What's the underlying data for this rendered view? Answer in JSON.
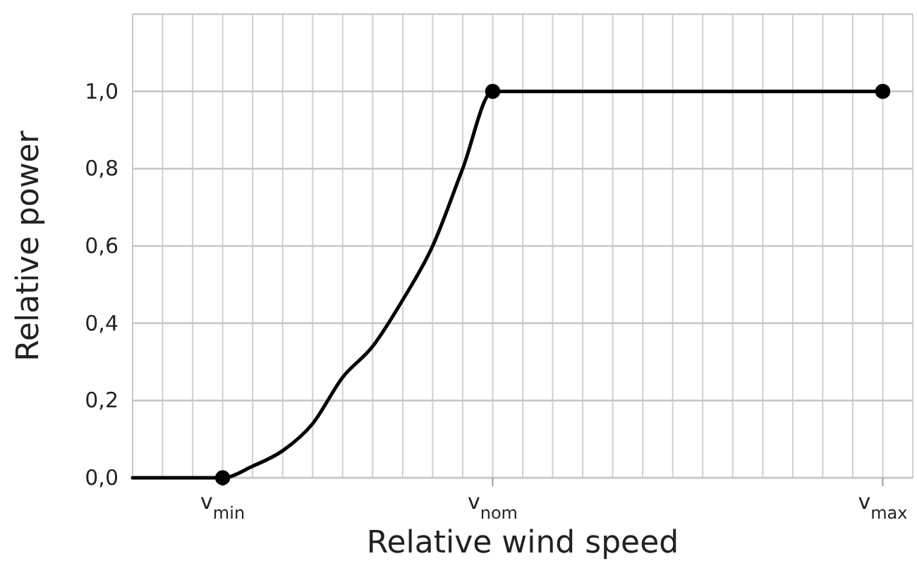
{
  "chart_data": {
    "type": "line",
    "xlabel": "Relative wind speed",
    "ylabel": "Relative power",
    "categories": [
      null,
      null,
      null,
      "v$_{min}$",
      null,
      null,
      null,
      null,
      null,
      null,
      null,
      null,
      "v$_{nom}$",
      null,
      null,
      null,
      null,
      null,
      null,
      null,
      null,
      null,
      null,
      null,
      null,
      "v$_{max}$",
      null
    ],
    "ylim": [
      0,
      1.2
    ],
    "yticks": [
      {
        "value": 0,
        "label": "0,0"
      },
      {
        "value": 0.2,
        "label": "0,2"
      },
      {
        "value": 0.4,
        "label": "0,4"
      },
      {
        "value": 0.6,
        "label": "0,6"
      },
      {
        "value": 0.8,
        "label": "0,8"
      },
      {
        "value": 1,
        "label": "1,0"
      },
      {
        "value": 1.2,
        "label": null
      }
    ],
    "grid": true,
    "series": [
      {
        "color": "#000000",
        "marker": "none",
        "values": [
          0,
          0,
          0,
          0,
          0.03,
          0.07,
          0.14,
          0.26,
          0.34,
          0.46,
          0.6,
          0.8,
          1,
          1,
          1,
          1,
          1,
          1,
          1,
          1,
          1,
          1,
          1,
          1,
          1,
          1,
          null
        ]
      },
      {
        "type": "scatter",
        "color": "#000000",
        "marker": "circle",
        "values": [
          null,
          null,
          null,
          0,
          null,
          null,
          null,
          null,
          null,
          null,
          null,
          null,
          1,
          null,
          null,
          null,
          null,
          null,
          null,
          null,
          null,
          null,
          null,
          null,
          null,
          1,
          null
        ]
      }
    ]
  }
}
